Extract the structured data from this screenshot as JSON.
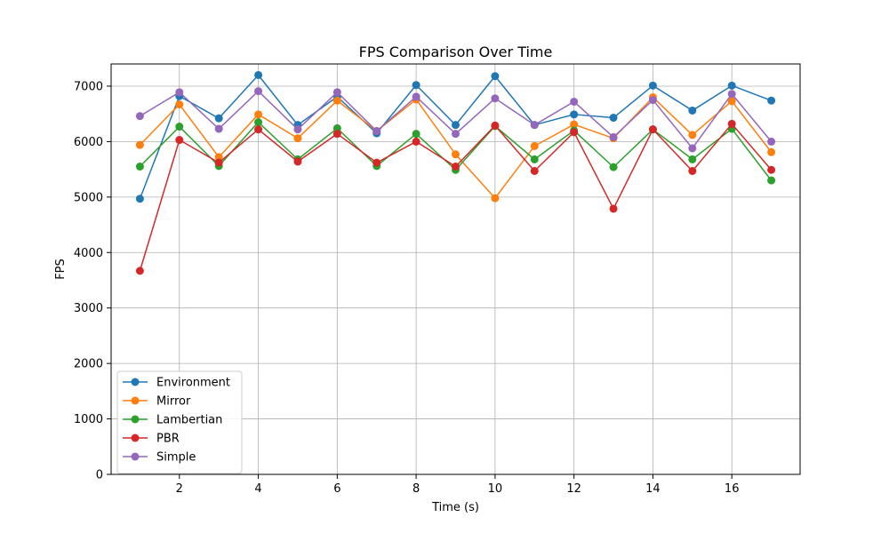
{
  "chart_data": {
    "type": "line",
    "title": "FPS Comparison Over Time",
    "xlabel": "Time (s)",
    "ylabel": "FPS",
    "xlim": [
      0.27,
      17.73
    ],
    "ylim": [
      0,
      7400
    ],
    "xticks": [
      2,
      4,
      6,
      8,
      10,
      12,
      14,
      16
    ],
    "yticks": [
      0,
      1000,
      2000,
      3000,
      4000,
      5000,
      6000,
      7000
    ],
    "grid": true,
    "legend_position": "lower-left",
    "x": [
      1,
      2,
      3,
      4,
      5,
      6,
      7,
      8,
      9,
      10,
      11,
      12,
      13,
      14,
      15,
      16,
      17
    ],
    "series": [
      {
        "name": "Environment",
        "color": "#1f77b4",
        "values": [
          4970,
          6820,
          6420,
          7200,
          6300,
          6810,
          6150,
          7020,
          6300,
          7180,
          6300,
          6490,
          6430,
          7010,
          6560,
          7010,
          6740
        ]
      },
      {
        "name": "Mirror",
        "color": "#ff7f0e",
        "values": [
          5940,
          6670,
          5720,
          6490,
          6060,
          6740,
          6190,
          6760,
          5770,
          4980,
          5920,
          6310,
          6060,
          6800,
          6120,
          6730,
          5810
        ]
      },
      {
        "name": "Lambertian",
        "color": "#2ca02c",
        "values": [
          5550,
          6270,
          5560,
          6350,
          5680,
          6240,
          5560,
          6140,
          5490,
          6280,
          5680,
          6200,
          5540,
          6220,
          5680,
          6230,
          5300
        ]
      },
      {
        "name": "PBR",
        "color": "#d62728",
        "values": [
          3670,
          6030,
          5620,
          6220,
          5640,
          6140,
          5620,
          6000,
          5550,
          6290,
          5470,
          6170,
          4790,
          6220,
          5470,
          6320,
          5490
        ]
      },
      {
        "name": "Simple",
        "color": "#9467bd",
        "values": [
          6460,
          6890,
          6230,
          6910,
          6220,
          6890,
          6190,
          6810,
          6140,
          6780,
          6300,
          6720,
          6080,
          6750,
          5880,
          6860,
          6000
        ]
      }
    ]
  }
}
